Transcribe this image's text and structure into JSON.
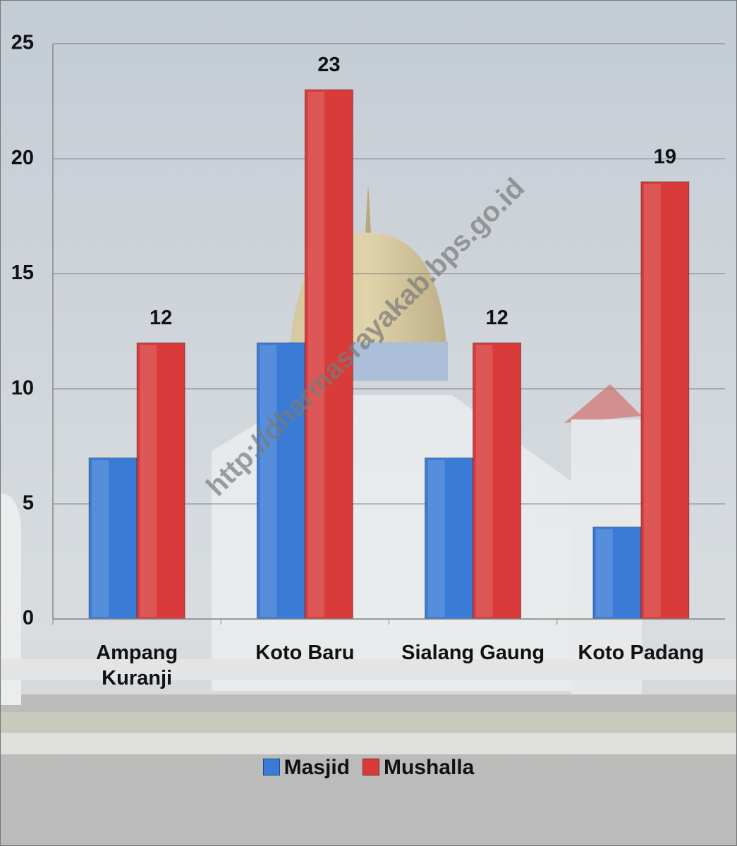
{
  "chart_data": {
    "type": "bar",
    "categories": [
      "Ampang Kuranji",
      "Koto Baru",
      "Sialang Gaung",
      "Koto Padang"
    ],
    "series": [
      {
        "name": "Masjid",
        "color": "#3a7bd5",
        "values": [
          7,
          12,
          7,
          4
        ],
        "show_labels": false
      },
      {
        "name": "Mushalla",
        "color": "#d93a3a",
        "values": [
          12,
          23,
          12,
          19
        ],
        "show_labels": true
      }
    ],
    "ylim": [
      0,
      25
    ],
    "yticks": [
      0,
      5,
      10,
      15,
      20,
      25
    ],
    "grid": true,
    "legend": "bottom",
    "watermark": "http://dharmasrayakab.bps.go.id"
  }
}
